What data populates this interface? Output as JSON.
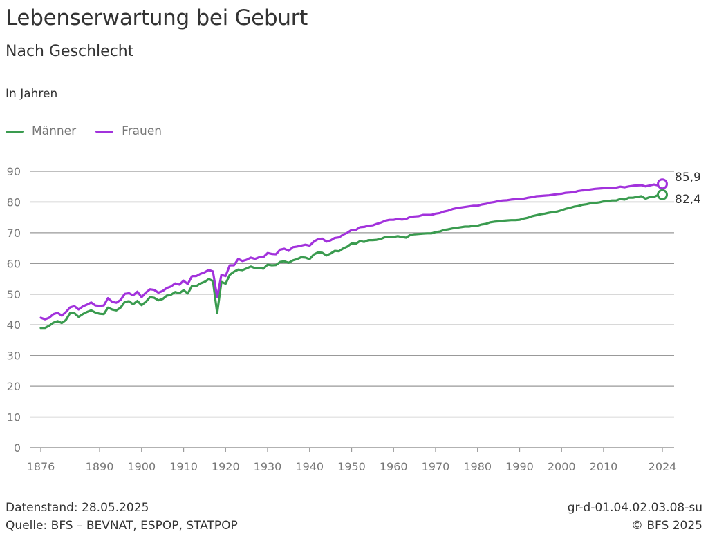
{
  "header": {
    "title": "Lebenserwartung bei Geburt",
    "subtitle": "Nach Geschlecht",
    "unit": "In Jahren"
  },
  "legend": [
    {
      "label": "Männer",
      "color": "#3a9b4f"
    },
    {
      "label": "Frauen",
      "color": "#a232dc"
    }
  ],
  "footer": {
    "datenstand": "Datenstand: 28.05.2025",
    "quelle": "Quelle: BFS – BEVNAT, ESPOP, STATPOP",
    "code": "gr-d-01.04.02.03.08-su",
    "copyright": "© BFS 2025"
  },
  "chart_data": {
    "type": "line",
    "title": "Lebenserwartung bei Geburt",
    "subtitle": "Nach Geschlecht",
    "xlabel": "",
    "ylabel": "In Jahren",
    "ylim": [
      0,
      90
    ],
    "yticks": [
      0,
      10,
      20,
      30,
      40,
      50,
      60,
      70,
      80,
      90
    ],
    "xlim": [
      1876,
      2024
    ],
    "xticks": [
      1876,
      1890,
      1900,
      1910,
      1920,
      1930,
      1940,
      1950,
      1960,
      1970,
      1980,
      1990,
      2000,
      2010,
      2024
    ],
    "grid": true,
    "legend_position": "top-left",
    "end_labels": [
      {
        "series": "Frauen",
        "year": 2024,
        "value": "85,9"
      },
      {
        "series": "Männer",
        "year": 2024,
        "value": "82,4"
      }
    ],
    "x_start": 1876,
    "series": [
      {
        "name": "Männer",
        "color": "#3a9b4f",
        "values": [
          39.0,
          39.0,
          39.7,
          40.7,
          41.2,
          40.6,
          41.6,
          43.9,
          43.8,
          42.6,
          43.5,
          44.2,
          44.7,
          44.0,
          43.6,
          43.5,
          45.6,
          45.0,
          44.7,
          45.6,
          47.5,
          47.7,
          46.7,
          47.8,
          46.4,
          47.5,
          49.0,
          48.8,
          48.0,
          48.4,
          49.5,
          49.8,
          50.7,
          50.3,
          51.3,
          50.2,
          52.7,
          52.6,
          53.5,
          54.0,
          54.9,
          54.3,
          43.8,
          54.0,
          53.4,
          56.3,
          57.3,
          58.0,
          57.8,
          58.4,
          59.0,
          58.5,
          58.6,
          58.3,
          59.6,
          59.4,
          59.5,
          60.5,
          60.7,
          60.2,
          61.0,
          61.4,
          62.0,
          61.9,
          61.4,
          62.9,
          63.6,
          63.5,
          62.6,
          63.2,
          64.1,
          64.0,
          64.9,
          65.5,
          66.5,
          66.4,
          67.3,
          67.0,
          67.6,
          67.6,
          67.7,
          68.0,
          68.6,
          68.7,
          68.6,
          68.9,
          68.6,
          68.4,
          69.3,
          69.5,
          69.6,
          69.7,
          69.8,
          69.8,
          70.2,
          70.4,
          70.9,
          71.1,
          71.4,
          71.6,
          71.8,
          72.0,
          72.0,
          72.3,
          72.3,
          72.7,
          72.9,
          73.4,
          73.6,
          73.7,
          73.9,
          74.0,
          74.1,
          74.1,
          74.2,
          74.6,
          74.9,
          75.4,
          75.7,
          76.0,
          76.2,
          76.5,
          76.7,
          76.9,
          77.3,
          77.8,
          78.1,
          78.5,
          78.7,
          79.1,
          79.3,
          79.6,
          79.7,
          79.9,
          80.2,
          80.3,
          80.5,
          80.5,
          81.0,
          80.8,
          81.4,
          81.4,
          81.7,
          81.9,
          81.1,
          81.6,
          81.7,
          82.3,
          82.4
        ]
      },
      {
        "name": "Frauen",
        "color": "#a232dc",
        "values": [
          42.3,
          41.8,
          42.3,
          43.5,
          43.9,
          43.0,
          44.2,
          45.7,
          46.1,
          45.0,
          46.0,
          46.6,
          47.3,
          46.3,
          46.2,
          46.3,
          48.7,
          47.5,
          47.2,
          48.1,
          50.1,
          50.3,
          49.6,
          50.8,
          49.0,
          50.5,
          51.6,
          51.4,
          50.5,
          51.0,
          52.0,
          52.5,
          53.5,
          53.1,
          54.4,
          53.3,
          55.9,
          55.9,
          56.6,
          57.1,
          57.9,
          57.4,
          49.0,
          56.3,
          55.9,
          59.4,
          59.4,
          61.5,
          60.8,
          61.2,
          61.9,
          61.5,
          62.0,
          62.0,
          63.4,
          63.1,
          63.0,
          64.5,
          64.8,
          64.1,
          65.3,
          65.5,
          65.8,
          66.1,
          65.8,
          67.1,
          67.9,
          68.1,
          67.1,
          67.5,
          68.3,
          68.5,
          69.4,
          70.0,
          70.9,
          70.9,
          71.8,
          71.9,
          72.3,
          72.4,
          72.9,
          73.3,
          73.9,
          74.2,
          74.2,
          74.5,
          74.3,
          74.5,
          75.2,
          75.3,
          75.4,
          75.8,
          75.8,
          75.8,
          76.2,
          76.4,
          76.9,
          77.2,
          77.7,
          78.0,
          78.2,
          78.4,
          78.6,
          78.8,
          78.8,
          79.2,
          79.4,
          79.8,
          80.0,
          80.3,
          80.5,
          80.6,
          80.8,
          80.9,
          81.0,
          81.1,
          81.4,
          81.6,
          81.9,
          82.0,
          82.1,
          82.2,
          82.4,
          82.6,
          82.7,
          83.0,
          83.1,
          83.2,
          83.6,
          83.8,
          83.9,
          84.1,
          84.3,
          84.4,
          84.5,
          84.6,
          84.6,
          84.7,
          85.0,
          84.8,
          85.1,
          85.3,
          85.4,
          85.5,
          85.1,
          85.4,
          85.7,
          85.4,
          85.9
        ]
      }
    ]
  }
}
